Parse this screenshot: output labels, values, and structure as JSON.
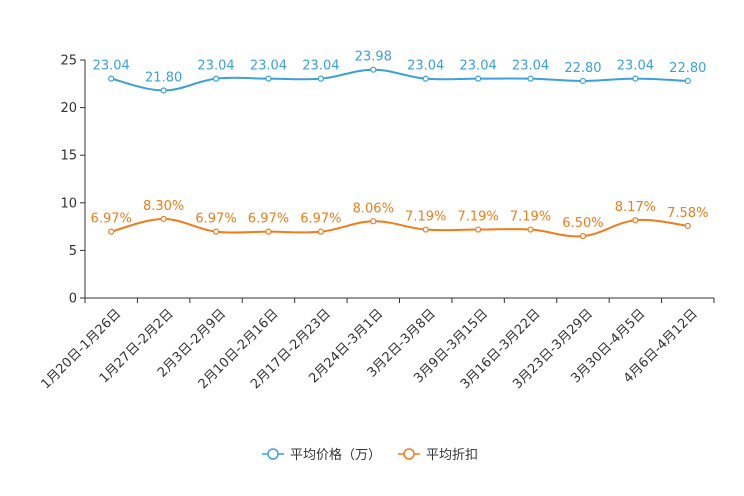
{
  "chart_data": {
    "type": "line",
    "categories": [
      "1月20日-1月26日",
      "1月27日-2月2日",
      "2月3日-2月9日",
      "2月10日-2月16日",
      "2月17日-2月23日",
      "2月24日-3月1日",
      "3月2日-3月8日",
      "3月9日-3月15日",
      "3月16日-3月22日",
      "3月23日-3月29日",
      "3月30日-4月5日",
      "4月6日-4月12日"
    ],
    "ylim": [
      0,
      25
    ],
    "yticks": [
      0,
      5,
      10,
      15,
      20,
      25
    ],
    "grid": false,
    "legend_position": "bottom-center",
    "series": [
      {
        "name": "平均价格（万）",
        "color": "#3ba1d9",
        "values": [
          23.04,
          21.8,
          23.04,
          23.04,
          23.04,
          23.98,
          23.04,
          23.04,
          23.04,
          22.8,
          23.04,
          22.8
        ],
        "labels": [
          "23.04",
          "21.80",
          "23.04",
          "23.04",
          "23.04",
          "23.98",
          "23.04",
          "23.04",
          "23.04",
          "22.80",
          "23.04",
          "22.80"
        ]
      },
      {
        "name": "平均折扣",
        "color": "#f07c1a",
        "values": [
          6.97,
          8.3,
          6.97,
          6.97,
          6.97,
          8.06,
          7.19,
          7.19,
          7.19,
          6.5,
          8.17,
          7.58
        ],
        "labels": [
          "6.97%",
          "8.30%",
          "6.97%",
          "6.97%",
          "6.97%",
          "8.06%",
          "7.19%",
          "7.19%",
          "7.19%",
          "6.50%",
          "8.17%",
          "7.58%"
        ]
      }
    ]
  }
}
